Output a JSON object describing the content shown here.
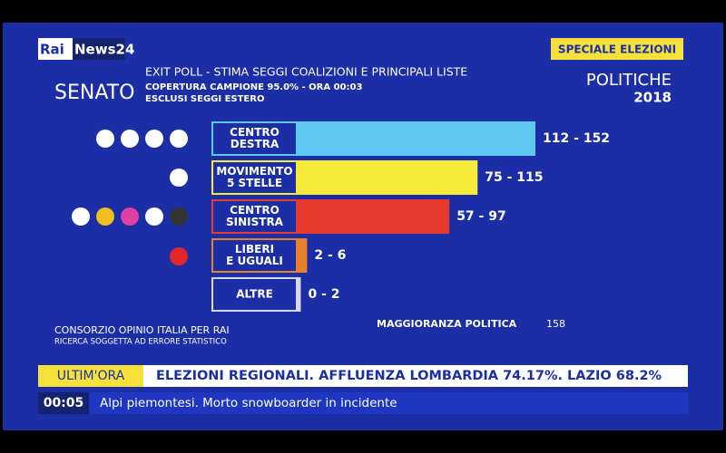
{
  "header": {
    "logo_rai": "Rai",
    "logo_news": "News24",
    "badge": "SPECIALE ELEZIONI",
    "chamber": "SENATO",
    "election": "POLITICHE",
    "year": "2018"
  },
  "chart_data": {
    "type": "range-bar",
    "title": "EXIT POLL - STIMA SEGGI COALIZIONI E PRINCIPALI LISTE",
    "subtitle": [
      "COPERTURA CAMPIONE 95.0% - ORA 00:03",
      "ESCLUSI SEGGI ESTERO"
    ],
    "categories": [
      [
        "CENTRO",
        "DESTRA"
      ],
      [
        "MOVIMENTO",
        "5 STELLE"
      ],
      [
        "CENTRO",
        "SINISTRA"
      ],
      [
        "LIBERI",
        "E UGUALI"
      ],
      [
        "ALTRE"
      ]
    ],
    "values": [
      [
        112,
        152
      ],
      [
        75,
        115
      ],
      [
        57,
        97
      ],
      [
        2,
        6
      ],
      [
        0,
        2
      ]
    ],
    "value_labels": [
      "112 - 152",
      "75 - 115",
      "57 - 97",
      "2 - 6",
      "0 - 2"
    ],
    "colors": [
      "#5ec8f2",
      "#f6ea3a",
      "#e63a2e",
      "#e8802a",
      "#d8d8f0"
    ],
    "source": "CONSORZIO OPINIO ITALIA PER RAI",
    "note": "RICERCA SOGGETTA AD ERRORE STATISTICO",
    "majority_label": "MAGGIORANZA POLITICA",
    "majority": 158
  },
  "ticker": {
    "tag": "ULTIM'ORA",
    "headline": "ELEZIONI REGIONALI. AFFLUENZA LOMBARDIA 74.17%. LAZIO 68.2%",
    "time": "00:05",
    "news": "Alpi piemontesi. Morto snowboarder in incidente"
  }
}
